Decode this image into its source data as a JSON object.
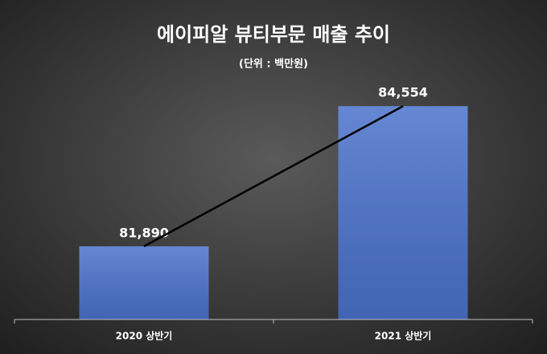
{
  "chart_data": {
    "type": "bar",
    "title": "에이피알 뷰티부문 매출 추이",
    "subtitle": "(단위 : 백만원)",
    "categories": [
      "2020 상반기",
      "2021 상반기"
    ],
    "values": [
      81890,
      84554
    ],
    "value_labels": [
      "81,890",
      "84,554"
    ],
    "color": "#4a72cc",
    "ylim": [
      80500,
      85000
    ],
    "trendline": true,
    "trendline_color": "#000000"
  }
}
